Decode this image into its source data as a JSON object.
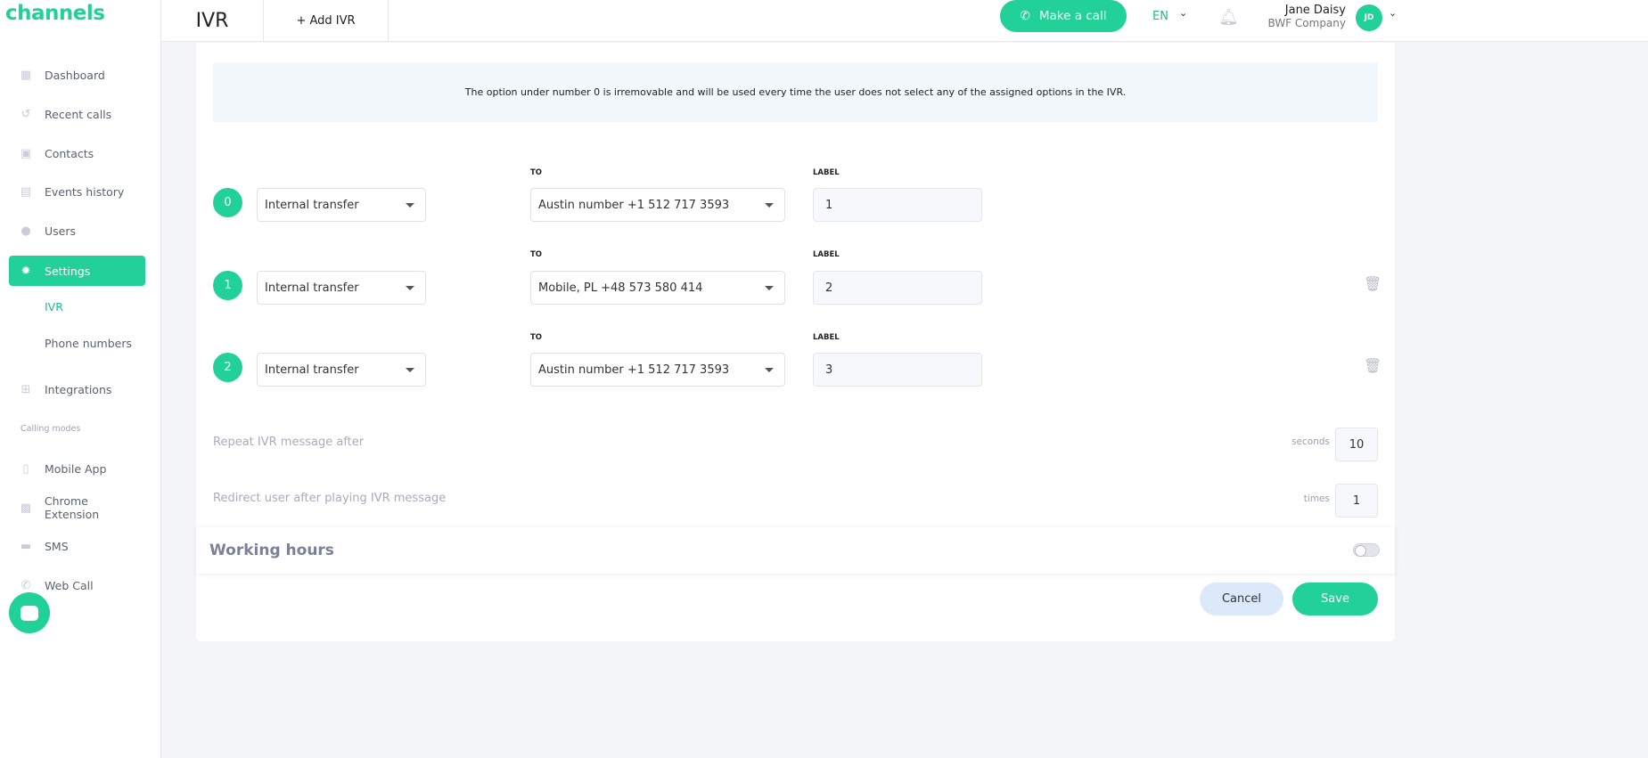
{
  "brand": "channels",
  "colors": {
    "accent": "#22d197"
  },
  "sidebar": {
    "items": [
      {
        "label": "Dashboard",
        "icon": "dashboard-icon"
      },
      {
        "label": "Recent calls",
        "icon": "history-icon"
      },
      {
        "label": "Contacts",
        "icon": "contacts-icon"
      },
      {
        "label": "Events history",
        "icon": "calendar-icon"
      },
      {
        "label": "Users",
        "icon": "user-icon"
      },
      {
        "label": "Settings",
        "icon": "gear-icon",
        "active": true
      }
    ],
    "sub_items": [
      "IVR",
      "Phone numbers"
    ],
    "integrations": "Integrations",
    "section": "Calling modes",
    "modes": [
      "Mobile App",
      "Chrome Extension",
      "SMS",
      "Web Call"
    ]
  },
  "header": {
    "title": "IVR",
    "add": "+ Add IVR",
    "call": "Make a call",
    "lang": "EN",
    "user_name": "Jane Daisy",
    "company": "BWF Company",
    "initials": "JD"
  },
  "info": "The option under number 0 is irremovable and will be used every time the user does not select any of the assigned options in the IVR.",
  "options": [
    {
      "num": "0",
      "type": "Internal transfer",
      "to_label": "TO",
      "to": "Austin number +1 512 717 3593",
      "label_label": "LABEL",
      "label": "1"
    },
    {
      "num": "1",
      "type": "Internal transfer",
      "to_label": "TO",
      "to": "Mobile, PL +48 573 580 414",
      "label_label": "LABEL",
      "label": "2"
    },
    {
      "num": "2",
      "type": "Internal transfer",
      "to_label": "TO",
      "to": "Austin number +1 512 717 3593",
      "label_label": "LABEL",
      "label": "3"
    }
  ],
  "repeat": {
    "label": "Repeat IVR message after",
    "unit": "seconds",
    "value": "10"
  },
  "redirect": {
    "label": "Redirect user after playing IVR message",
    "unit": "times",
    "value": "1"
  },
  "working_hours": {
    "label": "Working hours",
    "enabled": false
  },
  "actions": {
    "cancel": "Cancel",
    "save": "Save"
  }
}
